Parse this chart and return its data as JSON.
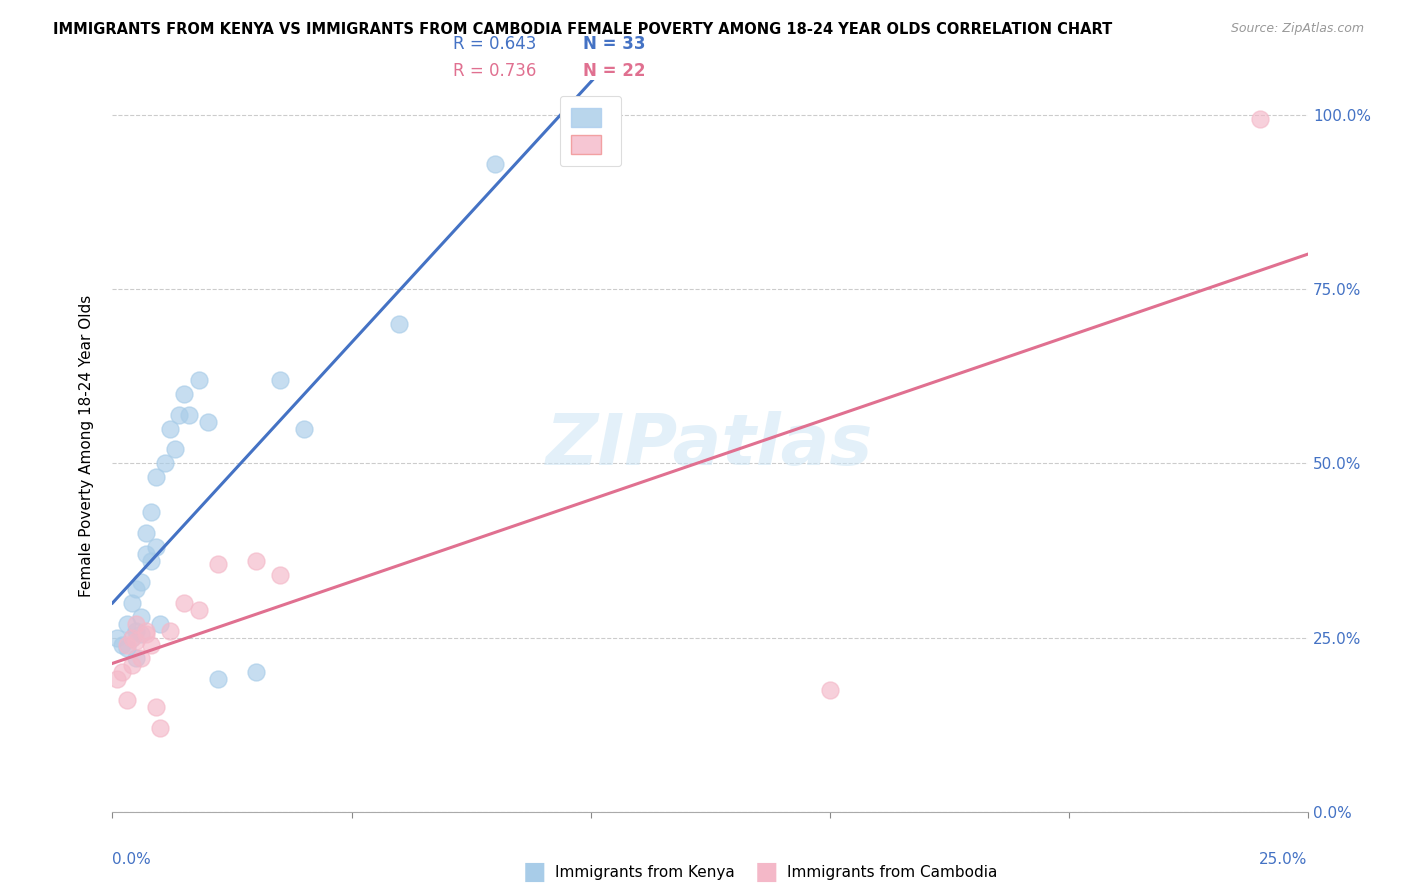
{
  "title": "IMMIGRANTS FROM KENYA VS IMMIGRANTS FROM CAMBODIA FEMALE POVERTY AMONG 18-24 YEAR OLDS CORRELATION CHART",
  "source": "Source: ZipAtlas.com",
  "ylabel": "Female Poverty Among 18-24 Year Olds",
  "legend_kenya_r": "R = 0.643",
  "legend_kenya_n": "N = 33",
  "legend_cambodia_r": "R = 0.736",
  "legend_cambodia_n": "N = 22",
  "watermark": "ZIPatlas",
  "kenya_color": "#a8cce8",
  "cambodia_color": "#f4b8c8",
  "kenya_line_color": "#4472C4",
  "cambodia_line_color": "#e07090",
  "kenya_x": [
    0.001,
    0.002,
    0.003,
    0.003,
    0.004,
    0.004,
    0.005,
    0.005,
    0.005,
    0.006,
    0.006,
    0.006,
    0.007,
    0.007,
    0.008,
    0.008,
    0.009,
    0.009,
    0.01,
    0.011,
    0.012,
    0.013,
    0.014,
    0.015,
    0.016,
    0.018,
    0.02,
    0.022,
    0.03,
    0.035,
    0.04,
    0.06,
    0.08
  ],
  "kenya_y": [
    0.25,
    0.24,
    0.235,
    0.27,
    0.25,
    0.3,
    0.22,
    0.26,
    0.32,
    0.255,
    0.28,
    0.33,
    0.37,
    0.4,
    0.36,
    0.43,
    0.38,
    0.48,
    0.27,
    0.5,
    0.55,
    0.52,
    0.57,
    0.6,
    0.57,
    0.62,
    0.56,
    0.19,
    0.2,
    0.62,
    0.55,
    0.7,
    0.93
  ],
  "cambodia_x": [
    0.001,
    0.002,
    0.003,
    0.003,
    0.004,
    0.004,
    0.005,
    0.005,
    0.006,
    0.007,
    0.007,
    0.008,
    0.009,
    0.01,
    0.012,
    0.015,
    0.018,
    0.022,
    0.03,
    0.035,
    0.15,
    0.24
  ],
  "cambodia_y": [
    0.19,
    0.2,
    0.16,
    0.24,
    0.21,
    0.25,
    0.245,
    0.27,
    0.22,
    0.255,
    0.26,
    0.24,
    0.15,
    0.12,
    0.26,
    0.3,
    0.29,
    0.355,
    0.36,
    0.34,
    0.175,
    0.995
  ],
  "xlim": [
    0.0,
    0.25
  ],
  "ylim": [
    0.0,
    1.05
  ],
  "yticks": [
    0.0,
    0.25,
    0.5,
    0.75,
    1.0
  ],
  "ytick_labels": [
    "0.0%",
    "25.0%",
    "50.0%",
    "75.0%",
    "100.0%"
  ],
  "xtick_left_label": "0.0%",
  "xtick_right_label": "25.0%"
}
